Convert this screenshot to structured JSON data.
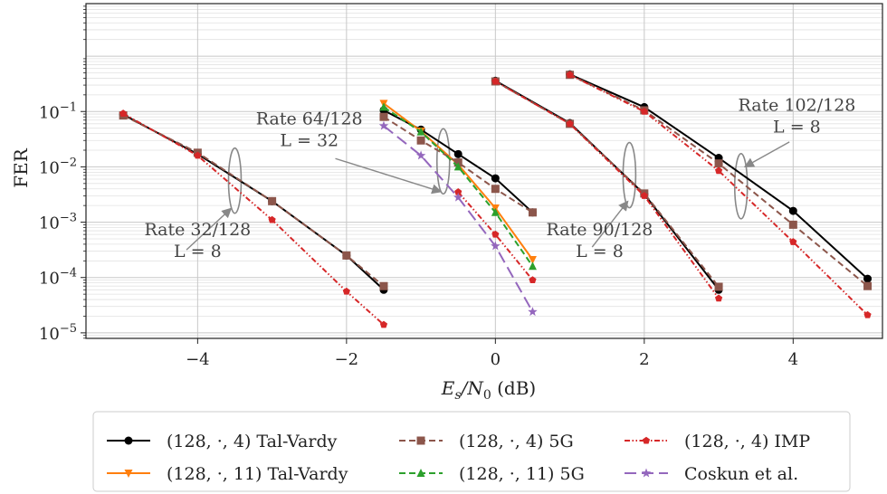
{
  "chart_data": {
    "type": "line",
    "title": "",
    "xlabel": "E_s/N_0 (dB)",
    "xlabel_parts": {
      "main": "E",
      "sub1": "s",
      "slash": "/N",
      "sub2": "0",
      "unit": " (dB)"
    },
    "ylabel": "FER",
    "xlim": [
      -5.5,
      5.2
    ],
    "ylim_log10": [
      -5.1,
      0.95
    ],
    "y_scale": "log",
    "x_ticks": [
      -4,
      -2,
      0,
      2,
      4
    ],
    "x_tick_labels": [
      "−4",
      "−2",
      "0",
      "2",
      "4"
    ],
    "y_ticks_log10": [
      -5,
      -4,
      -3,
      -2,
      -1
    ],
    "y_tick_labels": [
      {
        "base": "10",
        "exp": "−5"
      },
      {
        "base": "10",
        "exp": "−4"
      },
      {
        "base": "10",
        "exp": "−3"
      },
      {
        "base": "10",
        "exp": "−2"
      },
      {
        "base": "10",
        "exp": "−1"
      }
    ],
    "grid": true,
    "legend_position": "bottom",
    "series": [
      {
        "name": "(128, ·, 4) Tal-Vardy",
        "color": "#000000",
        "marker": "circle",
        "dash": "solid",
        "groups": [
          {
            "x": [
              -5,
              -4,
              -3,
              -2,
              -1.5
            ],
            "y": [
              0.088,
              0.017,
              0.0024,
              0.00025,
              6e-05
            ]
          },
          {
            "x": [
              -1.5,
              -1,
              -0.5,
              0,
              0.5
            ],
            "y": [
              0.105,
              0.047,
              0.017,
              0.0062,
              0.0015
            ]
          },
          {
            "x": [
              0,
              1,
              2,
              3
            ],
            "y": [
              0.36,
              0.062,
              0.0032,
              6e-05
            ]
          },
          {
            "x": [
              1,
              2,
              3,
              4,
              5
            ],
            "y": [
              0.47,
              0.12,
              0.0145,
              0.0016,
              9.5e-05
            ]
          }
        ]
      },
      {
        "name": "(128, ·, 11) Tal-Vardy",
        "color": "#ff7f0e",
        "marker": "triangle-down",
        "dash": "solid",
        "groups": [
          {
            "x": [
              -1.5,
              -1,
              -0.5,
              0,
              0.5
            ],
            "y": [
              0.14,
              0.044,
              0.011,
              0.0018,
              0.00021
            ]
          }
        ]
      },
      {
        "name": "(128, ·, 4) 5G",
        "color": "#8c564b",
        "marker": "square",
        "dash": "dashed",
        "groups": [
          {
            "x": [
              -5,
              -4,
              -3,
              -2,
              -1.5
            ],
            "y": [
              0.085,
              0.018,
              0.0024,
              0.00025,
              7e-05
            ]
          },
          {
            "x": [
              -1.5,
              -1,
              -0.5,
              0,
              0.5
            ],
            "y": [
              0.08,
              0.03,
              0.012,
              0.004,
              0.0015
            ]
          },
          {
            "x": [
              0,
              1,
              2,
              3
            ],
            "y": [
              0.35,
              0.06,
              0.0033,
              6.8e-05
            ]
          },
          {
            "x": [
              1,
              2,
              3,
              4,
              5
            ],
            "y": [
              0.46,
              0.105,
              0.0115,
              0.0009,
              7e-05
            ]
          }
        ]
      },
      {
        "name": "(128, ·, 11) 5G",
        "color": "#2ca02c",
        "marker": "triangle-up",
        "dash": "dashed",
        "groups": [
          {
            "x": [
              -1.5,
              -1,
              -0.5,
              0,
              0.5
            ],
            "y": [
              0.12,
              0.043,
              0.01,
              0.0015,
              0.00016
            ]
          }
        ]
      },
      {
        "name": "(128, ·, 4) IMP",
        "color": "#d62728",
        "marker": "pentagon",
        "dash": "dashdotdot",
        "groups": [
          {
            "x": [
              -5,
              -4,
              -3,
              -2,
              -1.5
            ],
            "y": [
              0.092,
              0.016,
              0.0011,
              5.6e-05,
              1.4e-05
            ]
          },
          {
            "x": [
              0,
              1,
              2,
              3
            ],
            "y": [
              0.35,
              0.06,
              0.003,
              4.2e-05
            ]
          },
          {
            "x": [
              1,
              2,
              3,
              4,
              5
            ],
            "y": [
              0.46,
              0.1,
              0.0085,
              0.00044,
              2.1e-05
            ]
          },
          {
            "x": [
              -0.5,
              0,
              0.5
            ],
            "y": [
              0.0035,
              0.0006,
              9e-05
            ]
          }
        ]
      },
      {
        "name": "Coskun et al.",
        "color": "#9467bd",
        "marker": "star",
        "dash": "longdash",
        "groups": [
          {
            "x": [
              -1.5,
              -1,
              -0.5,
              0,
              0.5
            ],
            "y": [
              0.055,
              0.016,
              0.0028,
              0.00037,
              2.4e-05
            ]
          }
        ]
      }
    ],
    "annotations": [
      {
        "lines": [
          "Rate 32/128",
          "L = 8"
        ],
        "text_x": -4.0,
        "text_y_log10": -3.3,
        "ellipse_x": -3.5,
        "ellipse_y_log10": -2.25,
        "arrow_from_x": -4.15,
        "arrow_from_y_log10": -3.5,
        "arrow_to_x": -3.55,
        "arrow_to_y_log10": -2.75
      },
      {
        "lines": [
          "Rate 64/128",
          "L = 32"
        ],
        "text_x": -2.5,
        "text_y_log10": -1.3,
        "ellipse_x": -0.7,
        "ellipse_y_log10": -1.9,
        "arrow_from_x": -2.15,
        "arrow_from_y_log10": -1.85,
        "arrow_to_x": -0.73,
        "arrow_to_y_log10": -2.45
      },
      {
        "lines": [
          "Rate 90/128",
          "L = 8"
        ],
        "text_x": 1.4,
        "text_y_log10": -3.3,
        "ellipse_x": 1.8,
        "ellipse_y_log10": -2.15,
        "arrow_from_x": 1.3,
        "arrow_from_y_log10": -3.45,
        "arrow_to_x": 1.78,
        "arrow_to_y_log10": -2.62
      },
      {
        "lines": [
          "Rate 102/128",
          "L = 8"
        ],
        "text_x": 4.05,
        "text_y_log10": -1.05,
        "ellipse_x": 3.3,
        "ellipse_y_log10": -2.35,
        "arrow_from_x": 3.95,
        "arrow_from_y_log10": -1.55,
        "arrow_to_x": 3.35,
        "arrow_to_y_log10": -2.0
      }
    ]
  }
}
